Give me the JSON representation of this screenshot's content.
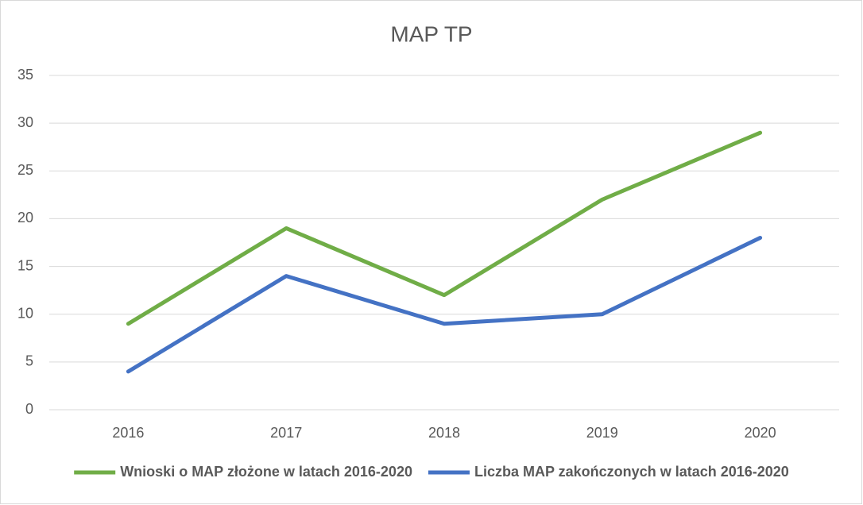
{
  "chart_data": {
    "type": "line",
    "title": "MAP TP",
    "categories": [
      "2016",
      "2017",
      "2018",
      "2019",
      "2020"
    ],
    "series": [
      {
        "name": "Wnioski o MAP złożone w latach 2016-2020",
        "color": "#70ad47",
        "values": [
          9,
          19,
          12,
          22,
          29
        ]
      },
      {
        "name": "Liczba MAP zakończonych w latach 2016-2020",
        "color": "#4472c4",
        "values": [
          4,
          14,
          9,
          10,
          18
        ]
      }
    ],
    "ylim": [
      0,
      35
    ],
    "yticks": [
      0,
      5,
      10,
      15,
      20,
      25,
      30,
      35
    ],
    "grid": true,
    "legend": "bottom"
  }
}
